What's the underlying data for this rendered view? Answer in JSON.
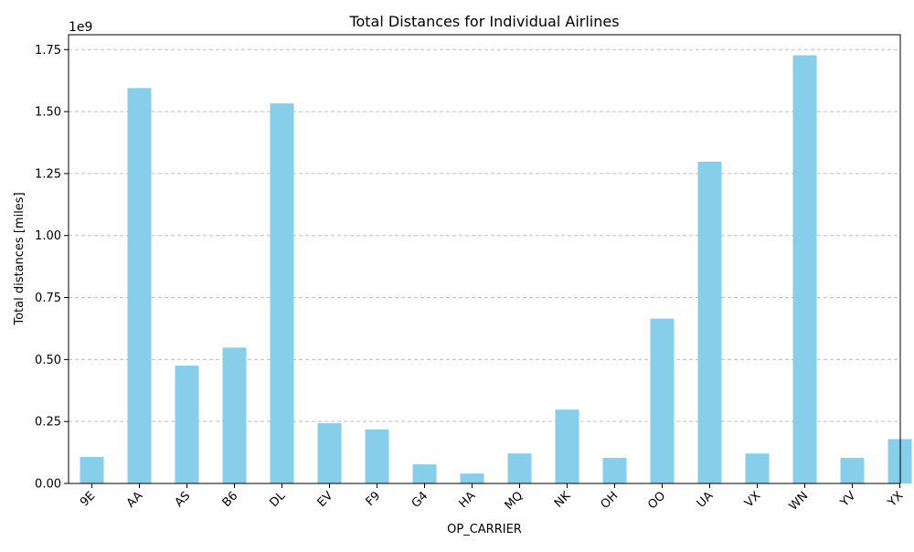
{
  "chart_data": {
    "type": "bar",
    "title": "Total Distances for Individual Airlines",
    "xlabel": "OP_CARRIER",
    "ylabel": "Total distances [miles]",
    "y_multiplier_label": "1e9",
    "categories": [
      "9E",
      "AA",
      "AS",
      "B6",
      "DL",
      "EV",
      "F9",
      "G4",
      "HA",
      "MQ",
      "NK",
      "OH",
      "OO",
      "UA",
      "VX",
      "WN",
      "YV",
      "YX"
    ],
    "values": [
      0.107,
      1.595,
      0.475,
      0.548,
      1.533,
      0.243,
      0.218,
      0.077,
      0.04,
      0.121,
      0.298,
      0.103,
      0.665,
      1.298,
      0.121,
      1.727,
      0.103,
      0.179
    ],
    "value_scale": 1000000000,
    "ylim": [
      0,
      1.81
    ],
    "yticks": [
      0.0,
      0.25,
      0.5,
      0.75,
      1.0,
      1.25,
      1.5,
      1.75
    ],
    "ytick_labels": [
      "0.00",
      "0.25",
      "0.50",
      "0.75",
      "1.00",
      "1.25",
      "1.50",
      "1.75"
    ],
    "grid": "y-axis dashed",
    "legend": "none",
    "bar_color": "#87ceeb",
    "grid_color": "#c0c0c0",
    "xtick_rotation": 45
  }
}
